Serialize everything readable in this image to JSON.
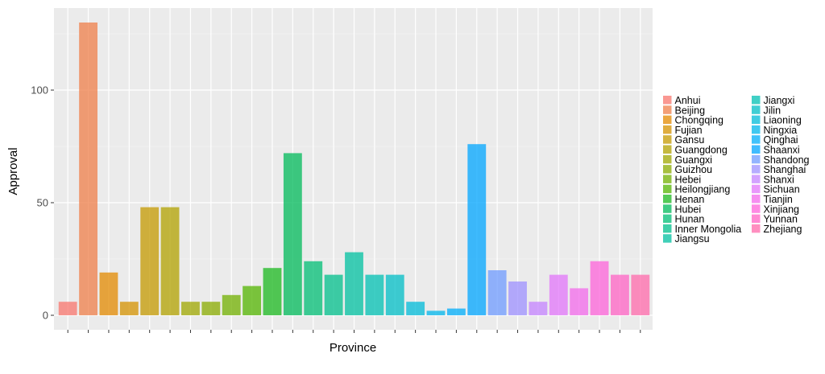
{
  "chart_data": {
    "type": "bar",
    "xlabel": "Province",
    "ylabel": "Approval",
    "ylim": [
      0,
      133
    ],
    "y_ticks": [
      0,
      50,
      100
    ],
    "grid": true,
    "legend_position": "right",
    "categories": [
      "Anhui",
      "Beijing",
      "Chongqing",
      "Fujian",
      "Gansu",
      "Guangdong",
      "Guangxi",
      "Guizhou",
      "Hebei",
      "Heilongjiang",
      "Henan",
      "Hubei",
      "Hunan",
      "Inner Mongolia",
      "Jiangsu",
      "Jiangxi",
      "Jilin",
      "Liaoning",
      "Ningxia",
      "Qinghai",
      "Shaanxi",
      "Shandong",
      "Shanghai",
      "Shanxi",
      "Sichuan",
      "Tianjin",
      "Xinjiang",
      "Yunnan",
      "Zhejiang"
    ],
    "values": [
      6,
      130,
      19,
      6,
      48,
      48,
      6,
      6,
      9,
      13,
      21,
      72,
      24,
      18,
      28,
      18,
      18,
      6,
      2,
      3,
      76,
      20,
      15,
      6,
      18,
      12,
      24,
      18,
      18
    ],
    "colors": [
      "#F8766D",
      "#EF7F49",
      "#E38900",
      "#D49200",
      "#C49A00",
      "#B2A100",
      "#9FA700",
      "#8AAB00",
      "#72B000",
      "#53B400",
      "#1BB81F",
      "#00BA5A",
      "#00BD74",
      "#00BF8B",
      "#00C0A0",
      "#00C0B3",
      "#00BEC6",
      "#00BBD8",
      "#00B6EB",
      "#00AEF9",
      "#00A5FF",
      "#6F9BFF",
      "#9E90FF",
      "#C483FF",
      "#E175FA",
      "#F36AEB",
      "#FE63DA",
      "#FF63C4",
      "#FF6AAB"
    ],
    "legend_title": ""
  }
}
